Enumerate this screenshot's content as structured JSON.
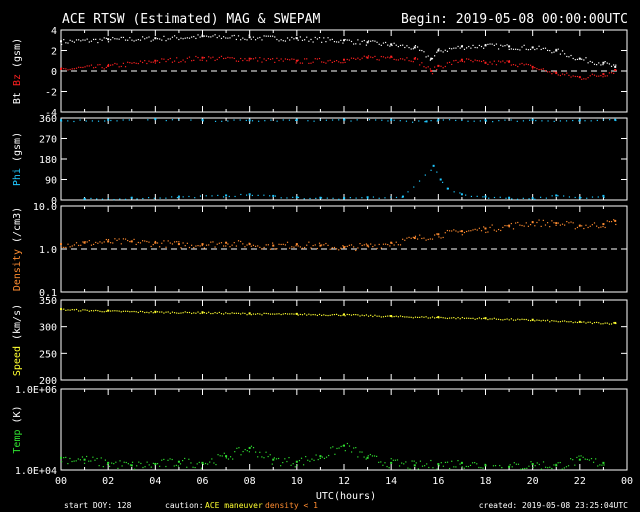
{
  "header": {
    "title": "ACE RTSW (Estimated) MAG & SWEPAM",
    "begin": "Begin: 2019-05-08 00:00:00UTC"
  },
  "footer": {
    "start_doy": "start DOY: 128",
    "caution_label": "caution:",
    "caution_maneuver": "ACE maneuver",
    "caution_density": "density < 1",
    "created": "created: 2019-05-08 23:25:04UTC"
  },
  "colors": {
    "bt": "#ffffff",
    "bz": "#ff2020",
    "phi": "#20c8ff",
    "density": "#ff8c30",
    "speed": "#ffff30",
    "temp": "#30e030",
    "caution_maneuver": "#ffff30",
    "caution_density": "#ff8c30"
  },
  "chart_data": [
    {
      "type": "scatter",
      "name": "mag-field",
      "ylabel_parts": [
        "Bt",
        "Bz",
        "(gsm)"
      ],
      "ylim": [
        -4,
        4
      ],
      "yticks": [
        "4",
        "2",
        "0",
        "-2",
        "-4"
      ],
      "reference_line": 0,
      "series": [
        {
          "name": "Bt",
          "color": "#ffffff",
          "x": [
            0,
            2,
            4,
            6,
            8,
            10,
            12,
            13,
            14,
            15,
            15.7,
            16,
            17,
            18,
            19,
            20,
            21,
            22,
            23,
            23.5
          ],
          "y": [
            2.9,
            3.1,
            3.2,
            3.4,
            3.3,
            3.2,
            3.0,
            2.8,
            2.6,
            2.3,
            1.2,
            2.0,
            2.4,
            2.5,
            2.4,
            2.3,
            2.0,
            1.2,
            0.8,
            0.4
          ]
        },
        {
          "name": "Bz",
          "color": "#ff2020",
          "x": [
            0,
            2,
            4,
            6,
            8,
            10,
            12,
            13,
            14,
            15,
            15.7,
            16,
            17,
            18,
            19,
            20,
            21,
            22,
            23,
            23.5
          ],
          "y": [
            0.2,
            0.5,
            1.0,
            1.3,
            1.2,
            1.0,
            1.1,
            1.3,
            1.4,
            1.2,
            0.0,
            0.5,
            1.1,
            0.8,
            0.9,
            0.4,
            -0.2,
            -0.6,
            -0.3,
            0.1
          ]
        }
      ]
    },
    {
      "type": "scatter",
      "name": "phi",
      "ylabel_parts": [
        "Phi",
        "(gsm)"
      ],
      "ylim": [
        0,
        360
      ],
      "yticks": [
        "360",
        "270",
        "180",
        "90",
        "0"
      ],
      "series": [
        {
          "name": "Phi-high",
          "color": "#20c8ff",
          "x": [
            0,
            2,
            4,
            6,
            8,
            10,
            12,
            14,
            15.5,
            16,
            18,
            20,
            22,
            23.5
          ],
          "y": [
            350,
            352,
            355,
            352,
            350,
            352,
            353,
            352,
            345,
            352,
            350,
            352,
            350,
            352
          ]
        },
        {
          "name": "Phi-low",
          "color": "#20c8ff",
          "x": [
            1,
            3,
            5,
            7,
            8,
            9,
            10,
            11,
            12,
            13,
            14.5,
            15.8,
            16.1,
            16.4,
            17,
            18,
            19,
            20,
            21,
            22,
            23
          ],
          "y": [
            5,
            10,
            15,
            20,
            25,
            18,
            12,
            10,
            8,
            12,
            15,
            150,
            90,
            50,
            25,
            15,
            10,
            8,
            20,
            10,
            18
          ]
        }
      ]
    },
    {
      "type": "scatter",
      "name": "density",
      "ylabel_parts": [
        "Density",
        "(/cm3)"
      ],
      "yscale": "log",
      "ylim": [
        0.1,
        10.0
      ],
      "yticks": [
        "10.0",
        "1.0",
        "0.1"
      ],
      "reference_line": 1.0,
      "series": [
        {
          "name": "Density",
          "color": "#ff8c30",
          "x": [
            0,
            1,
            2,
            3,
            4,
            5,
            6,
            7,
            8,
            9,
            10,
            11,
            12,
            13,
            14,
            15,
            16,
            17,
            18,
            19,
            20,
            21,
            22,
            23,
            23.5
          ],
          "y": [
            1.3,
            1.4,
            1.5,
            1.5,
            1.4,
            1.3,
            1.3,
            1.4,
            1.3,
            1.2,
            1.3,
            1.2,
            1.1,
            1.2,
            1.4,
            1.8,
            2.2,
            2.6,
            3.0,
            3.5,
            4.2,
            4.0,
            3.5,
            3.8,
            4.5
          ]
        }
      ]
    },
    {
      "type": "scatter",
      "name": "speed",
      "ylabel_parts": [
        "Speed",
        "(km/s)"
      ],
      "ylim": [
        200,
        350
      ],
      "yticks": [
        "350",
        "300",
        "250",
        "200"
      ],
      "series": [
        {
          "name": "Speed",
          "color": "#ffff30",
          "x": [
            0,
            2,
            4,
            6,
            8,
            10,
            12,
            14,
            16,
            18,
            20,
            22,
            23.5
          ],
          "y": [
            333,
            330,
            328,
            327,
            325,
            324,
            323,
            320,
            318,
            316,
            313,
            309,
            307
          ]
        }
      ]
    },
    {
      "type": "scatter",
      "name": "temp",
      "ylabel_parts": [
        "Temp",
        "(K)"
      ],
      "yscale": "log",
      "ylim": [
        10000,
        1000000
      ],
      "yticks": [
        "1.0E+06",
        "1.0E+04"
      ],
      "series": [
        {
          "name": "Temp",
          "color": "#30e030",
          "x": [
            0,
            1,
            2,
            3,
            4,
            5,
            6,
            7,
            8,
            9,
            10,
            11,
            12,
            13,
            14,
            15,
            16,
            17,
            18,
            19,
            20,
            21,
            22,
            23
          ],
          "y": [
            20000,
            18000,
            15000,
            13000,
            14000,
            16000,
            15000,
            22000,
            35000,
            18000,
            16000,
            22000,
            40000,
            20000,
            15000,
            13000,
            14000,
            15000,
            13000,
            12000,
            14000,
            13000,
            18000,
            15000
          ]
        }
      ]
    }
  ],
  "xaxis": {
    "label": "UTC(hours)",
    "ticks": [
      "00",
      "02",
      "04",
      "06",
      "08",
      "10",
      "12",
      "14",
      "16",
      "18",
      "20",
      "22",
      "00"
    ]
  }
}
